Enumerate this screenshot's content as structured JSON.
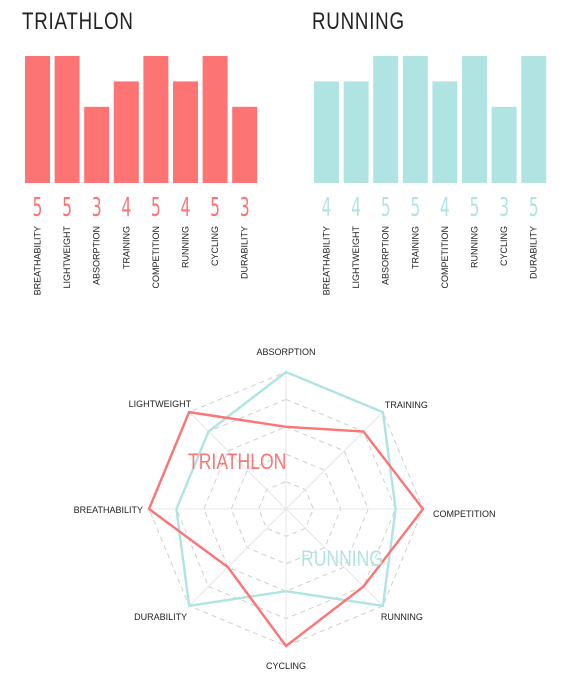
{
  "colors": {
    "triathlon": "#fc7474",
    "running": "#b0e4e3",
    "grid": "#cfcfcf"
  },
  "chart_data": [
    {
      "type": "bar",
      "title": "TRIATHLON",
      "categories": [
        "BREATHABILITY",
        "LIGHTWEIGHT",
        "ABSORPTION",
        "TRAINING",
        "COMPETITION",
        "RUNNING",
        "CYCLING",
        "DURABILITY"
      ],
      "values": [
        5,
        5,
        3,
        4,
        5,
        4,
        5,
        3
      ],
      "ylim": [
        0,
        5
      ]
    },
    {
      "type": "bar",
      "title": "RUNNING",
      "categories": [
        "BREATHABILITY",
        "LIGHTWEIGHT",
        "ABSORPTION",
        "TRAINING",
        "COMPETITION",
        "RUNNING",
        "CYCLING",
        "DURABILITY"
      ],
      "values": [
        4,
        4,
        5,
        5,
        4,
        5,
        3,
        5
      ],
      "ylim": [
        0,
        5
      ]
    },
    {
      "type": "radar",
      "axes": [
        "ABSORPTION",
        "TRAINING",
        "COMPETITION",
        "RUNNING",
        "CYCLING",
        "DURABILITY",
        "BREATHABILITY",
        "LIGHTWEIGHT"
      ],
      "range": [
        0,
        5
      ],
      "rings": 5,
      "series": [
        {
          "name": "TRIATHLON",
          "values": [
            3,
            4,
            5,
            4,
            5,
            3,
            5,
            5
          ]
        },
        {
          "name": "RUNNING",
          "values": [
            5,
            5,
            4,
            5,
            3,
            5,
            4,
            4
          ]
        }
      ]
    }
  ]
}
